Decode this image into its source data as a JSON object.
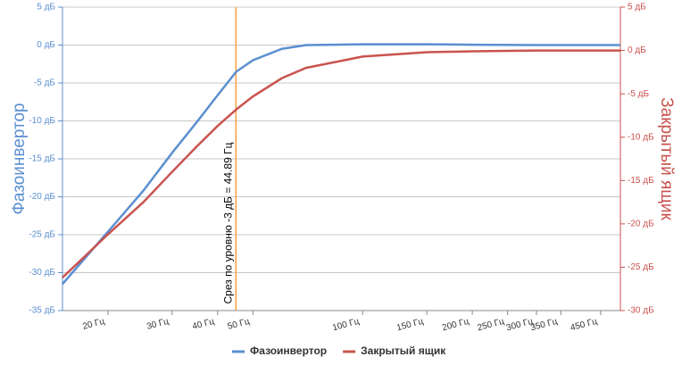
{
  "chart_data": {
    "type": "line",
    "x": [
      15,
      20,
      25,
      30,
      35,
      40,
      45,
      50,
      60,
      70,
      100,
      150,
      200,
      300,
      510
    ],
    "xlim": [
      15,
      510
    ],
    "log_x": true,
    "xticks": [
      {
        "value": 20,
        "label": "20 Гц"
      },
      {
        "value": 30,
        "label": "30 Гц"
      },
      {
        "value": 40,
        "label": "40 Гц"
      },
      {
        "value": 50,
        "label": "50 Гц"
      },
      {
        "value": 100,
        "label": "100 Гц"
      },
      {
        "value": 150,
        "label": "150 Гц"
      },
      {
        "value": 200,
        "label": "200 Гц"
      },
      {
        "value": 250,
        "label": "250 Гц"
      },
      {
        "value": 300,
        "label": "300 Гц"
      },
      {
        "value": 350,
        "label": "350 Гц"
      },
      {
        "value": 450,
        "label": "450 Гц"
      }
    ],
    "ylim": [
      -35,
      5
    ],
    "yticks": [
      {
        "value": 5,
        "label": "5 дБ"
      },
      {
        "value": 0,
        "label": "0 дБ"
      },
      {
        "value": -5,
        "label": "-5 дБ"
      },
      {
        "value": -10,
        "label": "-10 дБ"
      },
      {
        "value": -15,
        "label": "-15 дБ"
      },
      {
        "value": -20,
        "label": "-20 дБ"
      },
      {
        "value": -25,
        "label": "-25 дБ"
      },
      {
        "value": -30,
        "label": "-30 дБ"
      },
      {
        "value": -35,
        "label": "-35 дБ"
      }
    ],
    "y2lim": [
      -30,
      5
    ],
    "y2ticks": [
      {
        "value": 5,
        "label": "5 дБ"
      },
      {
        "value": 0,
        "label": "0 дБ"
      },
      {
        "value": -5,
        "label": "-5 дБ"
      },
      {
        "value": -10,
        "label": "-10 дБ"
      },
      {
        "value": -15,
        "label": "-15 дБ"
      },
      {
        "value": -20,
        "label": "-20 дБ"
      },
      {
        "value": -25,
        "label": "-25 дБ"
      },
      {
        "value": -30,
        "label": "-30 дБ"
      }
    ],
    "ylabel": "Фазоинвертор",
    "y2label": "Закрытый ящик",
    "grid": true,
    "legend": "bottom",
    "cutoff": {
      "x": 44.89,
      "label": "Срез по уровню -3 дБ = 44.89 Гц",
      "color": "#f5a142"
    },
    "series": [
      {
        "name": "Фазоинвертор",
        "color": "#5b8fd0",
        "values": [
          -31.5,
          -24.6,
          -19.2,
          -14.2,
          -10.2,
          -6.6,
          -3.5,
          -2.0,
          -0.5,
          0,
          0.1,
          0.1,
          0.05,
          0,
          0
        ]
      },
      {
        "name": "Закрытый ящик",
        "color": "#c9534f",
        "axis": "y2",
        "values": [
          -26.2,
          -21.2,
          -17.5,
          -14.0,
          -11.1,
          -8.7,
          -6.8,
          -5.3,
          -3.2,
          -2.0,
          -0.7,
          -0.2,
          -0.1,
          0,
          0
        ]
      }
    ]
  }
}
